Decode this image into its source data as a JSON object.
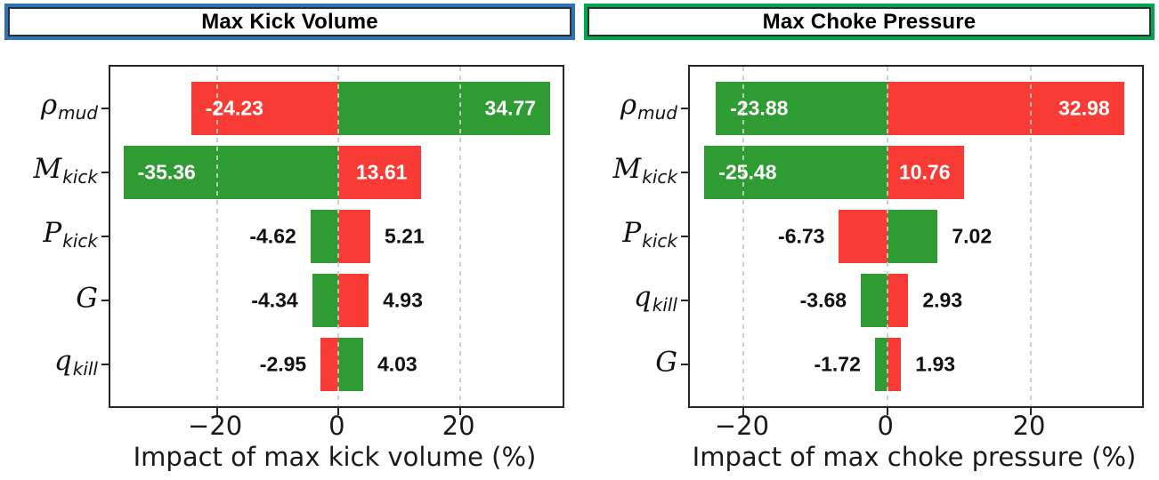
{
  "figure": {
    "background": "#ffffff",
    "colors": {
      "green": "#2f9b33",
      "red": "#f83b35",
      "grid": "#cacaca",
      "axis": "#262626",
      "label_inside": "#ffffff",
      "label_outside": "#111111"
    }
  },
  "chart_data": [
    {
      "type": "bar",
      "orientation": "horizontal-tornado",
      "title": "Max Kick Volume",
      "title_border_color": "#2e73b8",
      "xlabel": "Impact of max kick volume (%)",
      "xlim": [
        -37.5,
        36.8
      ],
      "grid": true,
      "legend": "none",
      "xticks": [
        {
          "value": -20,
          "label": "−20"
        },
        {
          "value": 0,
          "label": "0"
        },
        {
          "value": 20,
          "label": "20"
        }
      ],
      "categories": [
        {
          "main": "ρ",
          "sub": "mud"
        },
        {
          "main": "M",
          "sub": "kick"
        },
        {
          "main": "P",
          "sub": "kick"
        },
        {
          "main": "G",
          "sub": ""
        },
        {
          "main": "q",
          "sub": "kill"
        }
      ],
      "series": [
        {
          "name": "negative-impact",
          "values": [
            -24.23,
            -35.36,
            -4.62,
            -4.34,
            -2.95
          ],
          "labels": [
            "-24.23",
            "-35.36",
            "-4.62",
            "-4.34",
            "-2.95"
          ],
          "colors": [
            "red",
            "green",
            "green",
            "green",
            "red"
          ]
        },
        {
          "name": "positive-impact",
          "values": [
            34.77,
            13.61,
            5.21,
            4.93,
            4.03
          ],
          "labels": [
            "34.77",
            "13.61",
            "5.21",
            "4.93",
            "4.03"
          ],
          "colors": [
            "green",
            "red",
            "red",
            "red",
            "green"
          ]
        }
      ]
    },
    {
      "type": "bar",
      "orientation": "horizontal-tornado",
      "title": "Max Choke Pressure",
      "title_border_color": "#00a550",
      "xlabel": "Impact of max choke pressure (%)",
      "xlim": [
        -27.5,
        35.5
      ],
      "grid": true,
      "legend": "none",
      "xticks": [
        {
          "value": -20,
          "label": "−20"
        },
        {
          "value": 0,
          "label": "0"
        },
        {
          "value": 20,
          "label": "20"
        }
      ],
      "categories": [
        {
          "main": "ρ",
          "sub": "mud"
        },
        {
          "main": "M",
          "sub": "kick"
        },
        {
          "main": "P",
          "sub": "kick"
        },
        {
          "main": "q",
          "sub": "kill"
        },
        {
          "main": "G",
          "sub": ""
        }
      ],
      "series": [
        {
          "name": "negative-impact",
          "values": [
            -23.88,
            -25.48,
            -6.73,
            -3.68,
            -1.72
          ],
          "labels": [
            "-23.88",
            "-25.48",
            "-6.73",
            "-3.68",
            "-1.72"
          ],
          "colors": [
            "green",
            "green",
            "red",
            "green",
            "green"
          ]
        },
        {
          "name": "positive-impact",
          "values": [
            32.98,
            10.76,
            7.02,
            2.93,
            1.93
          ],
          "labels": [
            "32.98",
            "10.76",
            "7.02",
            "2.93",
            "1.93"
          ],
          "colors": [
            "red",
            "red",
            "green",
            "red",
            "red"
          ]
        }
      ]
    }
  ]
}
